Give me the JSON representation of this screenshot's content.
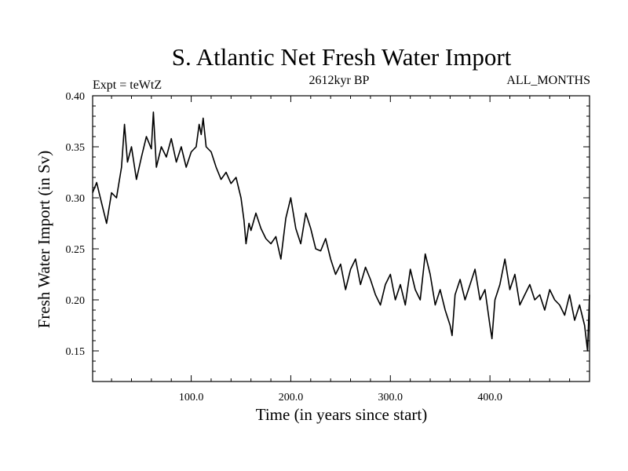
{
  "chart_data": {
    "type": "line",
    "title": "S. Atlantic Net Fresh Water Import",
    "subtitle_left": "Expt = teWtZ",
    "subtitle_center": "2612kyr BP",
    "subtitle_right": "ALL_MONTHS",
    "xlabel": "Time (in years since start)",
    "ylabel": "Fresh Water Import (in Sv)",
    "xlim": [
      1,
      500
    ],
    "ylim": [
      0.12,
      0.4
    ],
    "xticks_major": [
      100,
      200,
      300,
      400
    ],
    "xtick_labels": [
      "100.0",
      "200.0",
      "300.0",
      "400.0"
    ],
    "yticks_major": [
      0.15,
      0.2,
      0.25,
      0.3,
      0.35,
      0.4
    ],
    "ytick_labels": [
      "0.15",
      "0.20",
      "0.25",
      "0.30",
      "0.35",
      "0.40"
    ],
    "grid": false,
    "series": [
      {
        "name": "Net Fresh Water Import",
        "color": "#000000",
        "x": [
          1,
          5,
          10,
          15,
          20,
          25,
          30,
          33,
          36,
          40,
          45,
          50,
          55,
          60,
          62,
          65,
          70,
          75,
          80,
          85,
          90,
          95,
          100,
          105,
          108,
          110,
          112,
          115,
          120,
          125,
          130,
          135,
          140,
          145,
          150,
          153,
          155,
          158,
          160,
          165,
          170,
          175,
          180,
          185,
          190,
          195,
          200,
          205,
          210,
          215,
          220,
          225,
          230,
          235,
          240,
          245,
          250,
          255,
          260,
          265,
          270,
          275,
          280,
          285,
          290,
          295,
          300,
          305,
          310,
          315,
          320,
          325,
          330,
          335,
          340,
          345,
          350,
          355,
          360,
          362,
          365,
          370,
          375,
          380,
          385,
          390,
          395,
          400,
          402,
          405,
          410,
          415,
          420,
          425,
          430,
          435,
          440,
          445,
          450,
          455,
          460,
          465,
          470,
          475,
          480,
          485,
          490,
          495,
          498,
          500
        ],
        "y": [
          0.305,
          0.315,
          0.295,
          0.275,
          0.305,
          0.3,
          0.33,
          0.372,
          0.335,
          0.35,
          0.318,
          0.34,
          0.36,
          0.348,
          0.384,
          0.33,
          0.35,
          0.34,
          0.358,
          0.335,
          0.35,
          0.33,
          0.345,
          0.35,
          0.372,
          0.362,
          0.378,
          0.35,
          0.345,
          0.33,
          0.318,
          0.325,
          0.314,
          0.32,
          0.3,
          0.278,
          0.255,
          0.275,
          0.268,
          0.285,
          0.27,
          0.26,
          0.255,
          0.262,
          0.24,
          0.28,
          0.3,
          0.27,
          0.255,
          0.285,
          0.27,
          0.25,
          0.248,
          0.26,
          0.24,
          0.225,
          0.235,
          0.21,
          0.23,
          0.24,
          0.215,
          0.232,
          0.22,
          0.205,
          0.195,
          0.215,
          0.225,
          0.2,
          0.215,
          0.195,
          0.23,
          0.21,
          0.2,
          0.245,
          0.225,
          0.195,
          0.21,
          0.19,
          0.175,
          0.165,
          0.205,
          0.22,
          0.2,
          0.215,
          0.23,
          0.2,
          0.21,
          0.175,
          0.162,
          0.2,
          0.215,
          0.24,
          0.21,
          0.225,
          0.195,
          0.205,
          0.215,
          0.2,
          0.205,
          0.19,
          0.21,
          0.2,
          0.195,
          0.185,
          0.205,
          0.18,
          0.195,
          0.175,
          0.15,
          0.205
        ]
      }
    ]
  }
}
